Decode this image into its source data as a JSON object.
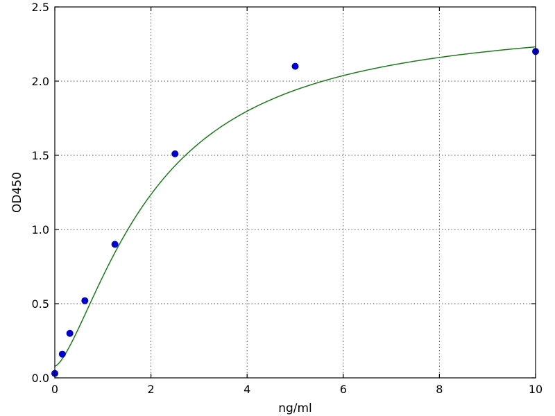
{
  "chart_data": {
    "type": "scatter",
    "xlabel": "ng/ml",
    "ylabel": "OD450",
    "xlim": [
      0,
      10
    ],
    "ylim": [
      0,
      2.5
    ],
    "grid": true,
    "xticks": [
      0,
      2,
      4,
      6,
      8,
      10
    ],
    "xtick_labels": [
      "0",
      "2",
      "4",
      "6",
      "8",
      "10"
    ],
    "yticks": [
      0,
      0.5,
      1.0,
      1.5,
      2.0,
      2.5
    ],
    "ytick_labels": [
      "0.0",
      "0.5",
      "1.0",
      "1.5",
      "2.0",
      "2.5"
    ],
    "points": [
      {
        "x": 0,
        "y": 0.03
      },
      {
        "x": 0.156,
        "y": 0.16
      },
      {
        "x": 0.3125,
        "y": 0.3
      },
      {
        "x": 0.625,
        "y": 0.52
      },
      {
        "x": 1.25,
        "y": 0.9
      },
      {
        "x": 2.5,
        "y": 1.51
      },
      {
        "x": 5,
        "y": 2.1
      },
      {
        "x": 10,
        "y": 2.2
      }
    ],
    "fit_curve": {
      "model": "4PL",
      "bottom": 0.078,
      "top": 2.437,
      "ec50": 2.05,
      "hill": 1.48
    },
    "colors": {
      "points": "#0000cc",
      "curve": "#1a7a1a"
    }
  }
}
